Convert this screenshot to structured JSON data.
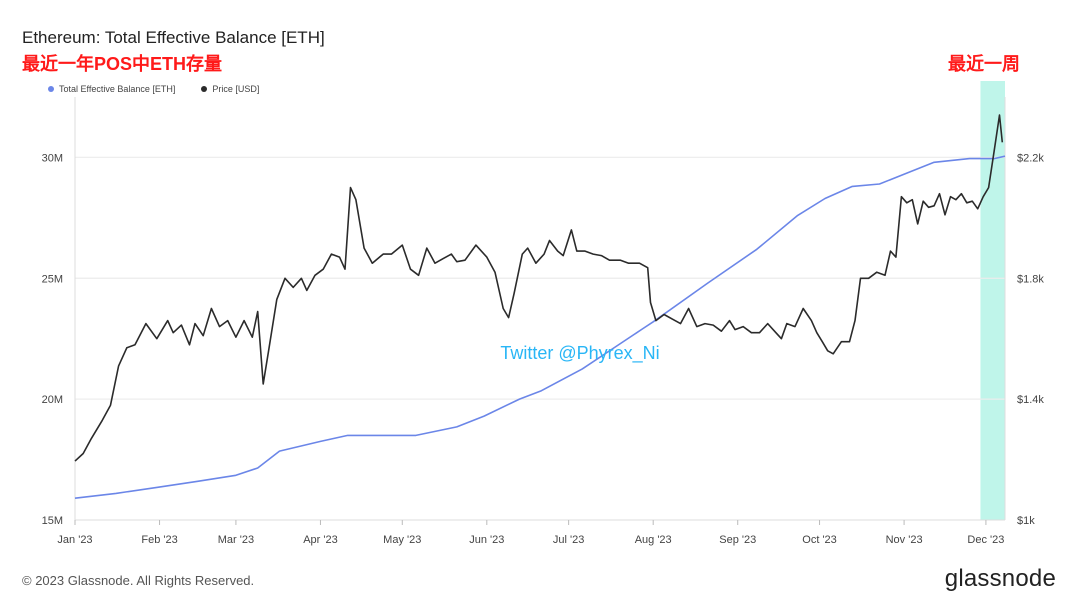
{
  "header": {
    "title": "Ethereum: Total Effective Balance [ETH]",
    "subtitle": "最近一年POS中ETH存量",
    "week_note": "最近一周"
  },
  "legend": {
    "items": [
      {
        "label": "Total Effective Balance [ETH]",
        "color": "#6b86e8"
      },
      {
        "label": "Price [USD]",
        "color": "#2b2b2b"
      }
    ]
  },
  "footer": {
    "copyright": "© 2023 Glassnode. All Rights Reserved.",
    "brand": "glassnode"
  },
  "chart_data": {
    "type": "line",
    "title": "Ethereum: Total Effective Balance [ETH]",
    "x_ticks": [
      "Jan '23",
      "Feb '23",
      "Mar '23",
      "Apr '23",
      "May '23",
      "Jun '23",
      "Jul '23",
      "Aug '23",
      "Sep '23",
      "Oct '23",
      "Nov '23",
      "Dec '23"
    ],
    "x_tick_days": [
      0,
      31,
      59,
      90,
      120,
      151,
      181,
      212,
      243,
      273,
      304,
      334
    ],
    "left_axis": {
      "label": "",
      "ticks": [
        "15M",
        "20M",
        "25M",
        "30M"
      ],
      "tick_values": [
        15000000,
        20000000,
        25000000,
        30000000
      ],
      "range": [
        15000000,
        32500000
      ]
    },
    "right_axis": {
      "label": "",
      "ticks": [
        "$1k",
        "$1.4k",
        "$1.8k",
        "$2.2k"
      ],
      "tick_values": [
        1000,
        1400,
        1800,
        2200
      ],
      "range": [
        1000,
        2400
      ]
    },
    "grid": true,
    "highlight": {
      "label": "最近一周",
      "start_day": 332,
      "end_day": 341,
      "color": "#bff5ea"
    },
    "watermark": "Twitter @Phyrex_Ni",
    "series": [
      {
        "name": "Total Effective Balance [ETH]",
        "axis": "left",
        "color": "#6b86e8",
        "points": [
          [
            0,
            15.9
          ],
          [
            15,
            16.1
          ],
          [
            30,
            16.35
          ],
          [
            45,
            16.6
          ],
          [
            59,
            16.85
          ],
          [
            67,
            17.15
          ],
          [
            75,
            17.85
          ],
          [
            90,
            18.25
          ],
          [
            100,
            18.5
          ],
          [
            108,
            18.5
          ],
          [
            125,
            18.5
          ],
          [
            140,
            18.85
          ],
          [
            150,
            19.3
          ],
          [
            163,
            20.0
          ],
          [
            171,
            20.35
          ],
          [
            186,
            21.25
          ],
          [
            200,
            22.3
          ],
          [
            208,
            22.9
          ],
          [
            212,
            23.2
          ],
          [
            232,
            24.8
          ],
          [
            250,
            26.2
          ],
          [
            265,
            27.6
          ],
          [
            275,
            28.3
          ],
          [
            285,
            28.8
          ],
          [
            295,
            28.9
          ],
          [
            305,
            29.35
          ],
          [
            315,
            29.8
          ],
          [
            328,
            29.95
          ],
          [
            337,
            29.95
          ],
          [
            341,
            30.05
          ]
        ]
      },
      {
        "name": "Price [USD]",
        "axis": "right",
        "color": "#2b2b2b",
        "points": [
          [
            0,
            1195
          ],
          [
            3,
            1220
          ],
          [
            6,
            1270
          ],
          [
            10,
            1330
          ],
          [
            13,
            1380
          ],
          [
            16,
            1510
          ],
          [
            19,
            1570
          ],
          [
            22,
            1580
          ],
          [
            26,
            1650
          ],
          [
            30,
            1600
          ],
          [
            34,
            1660
          ],
          [
            36,
            1620
          ],
          [
            39,
            1645
          ],
          [
            42,
            1580
          ],
          [
            44,
            1650
          ],
          [
            47,
            1610
          ],
          [
            50,
            1700
          ],
          [
            53,
            1640
          ],
          [
            56,
            1660
          ],
          [
            59,
            1605
          ],
          [
            62,
            1660
          ],
          [
            65,
            1605
          ],
          [
            67,
            1690
          ],
          [
            69,
            1450
          ],
          [
            71,
            1560
          ],
          [
            74,
            1730
          ],
          [
            77,
            1800
          ],
          [
            80,
            1770
          ],
          [
            83,
            1800
          ],
          [
            85,
            1760
          ],
          [
            88,
            1810
          ],
          [
            91,
            1830
          ],
          [
            94,
            1880
          ],
          [
            97,
            1870
          ],
          [
            99,
            1830
          ],
          [
            101,
            2100
          ],
          [
            103,
            2060
          ],
          [
            106,
            1900
          ],
          [
            109,
            1850
          ],
          [
            113,
            1880
          ],
          [
            116,
            1880
          ],
          [
            120,
            1910
          ],
          [
            123,
            1830
          ],
          [
            126,
            1810
          ],
          [
            129,
            1900
          ],
          [
            132,
            1850
          ],
          [
            135,
            1865
          ],
          [
            138,
            1880
          ],
          [
            140,
            1855
          ],
          [
            143,
            1860
          ],
          [
            147,
            1910
          ],
          [
            151,
            1870
          ],
          [
            154,
            1820
          ],
          [
            157,
            1700
          ],
          [
            159,
            1670
          ],
          [
            161,
            1750
          ],
          [
            164,
            1880
          ],
          [
            166,
            1900
          ],
          [
            169,
            1850
          ],
          [
            172,
            1880
          ],
          [
            174,
            1925
          ],
          [
            177,
            1890
          ],
          [
            179,
            1875
          ],
          [
            182,
            1960
          ],
          [
            184,
            1890
          ],
          [
            187,
            1890
          ],
          [
            190,
            1880
          ],
          [
            193,
            1875
          ],
          [
            196,
            1860
          ],
          [
            200,
            1860
          ],
          [
            203,
            1850
          ],
          [
            207,
            1850
          ],
          [
            210,
            1835
          ],
          [
            211,
            1720
          ],
          [
            213,
            1660
          ],
          [
            216,
            1680
          ],
          [
            219,
            1665
          ],
          [
            222,
            1650
          ],
          [
            225,
            1700
          ],
          [
            228,
            1640
          ],
          [
            231,
            1650
          ],
          [
            234,
            1645
          ],
          [
            237,
            1625
          ],
          [
            240,
            1660
          ],
          [
            242,
            1630
          ],
          [
            245,
            1640
          ],
          [
            248,
            1620
          ],
          [
            251,
            1620
          ],
          [
            254,
            1650
          ],
          [
            257,
            1620
          ],
          [
            259,
            1600
          ],
          [
            261,
            1650
          ],
          [
            264,
            1640
          ],
          [
            267,
            1700
          ],
          [
            270,
            1660
          ],
          [
            272,
            1620
          ],
          [
            274,
            1590
          ],
          [
            276,
            1560
          ],
          [
            278,
            1550
          ],
          [
            281,
            1590
          ],
          [
            284,
            1590
          ],
          [
            286,
            1660
          ],
          [
            288,
            1800
          ],
          [
            291,
            1800
          ],
          [
            294,
            1820
          ],
          [
            297,
            1810
          ],
          [
            299,
            1890
          ],
          [
            301,
            1870
          ],
          [
            303,
            2070
          ],
          [
            305,
            2050
          ],
          [
            307,
            2060
          ],
          [
            309,
            1980
          ],
          [
            311,
            2055
          ],
          [
            313,
            2035
          ],
          [
            315,
            2040
          ],
          [
            317,
            2080
          ],
          [
            319,
            2010
          ],
          [
            321,
            2070
          ],
          [
            323,
            2060
          ],
          [
            325,
            2080
          ],
          [
            327,
            2050
          ],
          [
            329,
            2055
          ],
          [
            331,
            2030
          ],
          [
            333,
            2070
          ],
          [
            335,
            2100
          ],
          [
            337,
            2220
          ],
          [
            339,
            2340
          ],
          [
            340,
            2250
          ]
        ]
      }
    ]
  }
}
